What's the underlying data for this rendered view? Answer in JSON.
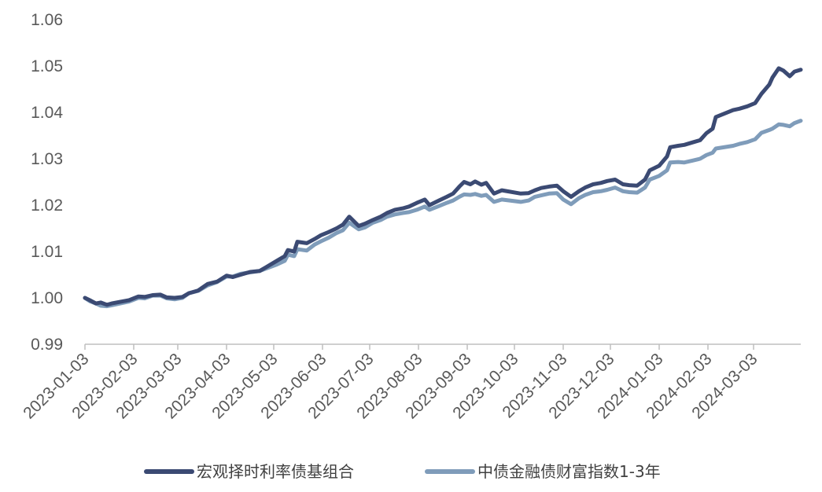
{
  "chart_data": {
    "type": "line",
    "title": "",
    "xlabel": "",
    "ylabel": "",
    "ylim": [
      0.99,
      1.06
    ],
    "y_ticks": [
      "0.99",
      "1.00",
      "1.01",
      "1.02",
      "1.03",
      "1.04",
      "1.05",
      "1.06"
    ],
    "x_ticks": [
      "2023-01-03",
      "2023-02-03",
      "2023-03-03",
      "2023-04-03",
      "2023-05-03",
      "2023-06-03",
      "2023-07-03",
      "2023-08-03",
      "2023-09-03",
      "2023-10-03",
      "2023-11-03",
      "2023-12-03",
      "2024-01-03",
      "2024-02-03",
      "2024-03-03"
    ],
    "grid": false,
    "legend_position": "bottom",
    "series": [
      {
        "name": "宏观择时利率债基组合",
        "color": "#3b4a73",
        "points": [
          [
            "2023-01-03",
            1.0
          ],
          [
            "2023-01-06",
            0.9995
          ],
          [
            "2023-01-10",
            0.9988
          ],
          [
            "2023-01-13",
            0.999
          ],
          [
            "2023-01-17",
            0.9985
          ],
          [
            "2023-01-20",
            0.9988
          ],
          [
            "2023-01-31",
            0.9995
          ],
          [
            "2023-02-06",
            1.0003
          ],
          [
            "2023-02-10",
            1.0002
          ],
          [
            "2023-02-15",
            1.0006
          ],
          [
            "2023-02-20",
            1.0007
          ],
          [
            "2023-02-24",
            1.0001
          ],
          [
            "2023-03-01",
            1.0
          ],
          [
            "2023-03-06",
            1.0002
          ],
          [
            "2023-03-10",
            1.001
          ],
          [
            "2023-03-16",
            1.0016
          ],
          [
            "2023-03-22",
            1.003
          ],
          [
            "2023-03-28",
            1.0035
          ],
          [
            "2023-04-03",
            1.0048
          ],
          [
            "2023-04-07",
            1.0045
          ],
          [
            "2023-04-12",
            1.005
          ],
          [
            "2023-04-18",
            1.0056
          ],
          [
            "2023-04-24",
            1.0058
          ],
          [
            "2023-04-28",
            1.0066
          ],
          [
            "2023-05-05",
            1.008
          ],
          [
            "2023-05-10",
            1.009
          ],
          [
            "2023-05-12",
            1.0103
          ],
          [
            "2023-05-16",
            1.01
          ],
          [
            "2023-05-18",
            1.0121
          ],
          [
            "2023-05-24",
            1.0118
          ],
          [
            "2023-05-29",
            1.0127
          ],
          [
            "2023-06-02",
            1.0135
          ],
          [
            "2023-06-07",
            1.0142
          ],
          [
            "2023-06-12",
            1.015
          ],
          [
            "2023-06-16",
            1.0158
          ],
          [
            "2023-06-20",
            1.0175
          ],
          [
            "2023-06-26",
            1.0155
          ],
          [
            "2023-06-30",
            1.016
          ],
          [
            "2023-07-05",
            1.0168
          ],
          [
            "2023-07-10",
            1.0175
          ],
          [
            "2023-07-14",
            1.0183
          ],
          [
            "2023-07-19",
            1.019
          ],
          [
            "2023-07-24",
            1.0193
          ],
          [
            "2023-07-28",
            1.0197
          ],
          [
            "2023-08-02",
            1.0205
          ],
          [
            "2023-08-07",
            1.0212
          ],
          [
            "2023-08-10",
            1.02
          ],
          [
            "2023-08-16",
            1.021
          ],
          [
            "2023-08-21",
            1.0218
          ],
          [
            "2023-08-25",
            1.0225
          ],
          [
            "2023-08-29",
            1.024
          ],
          [
            "2023-09-01",
            1.025
          ],
          [
            "2023-09-05",
            1.0245
          ],
          [
            "2023-09-08",
            1.0251
          ],
          [
            "2023-09-12",
            1.0244
          ],
          [
            "2023-09-15",
            1.0248
          ],
          [
            "2023-09-20",
            1.0225
          ],
          [
            "2023-09-25",
            1.0232
          ],
          [
            "2023-10-07",
            1.0225
          ],
          [
            "2023-10-12",
            1.0226
          ],
          [
            "2023-10-16",
            1.0232
          ],
          [
            "2023-10-20",
            1.0237
          ],
          [
            "2023-10-25",
            1.024
          ],
          [
            "2023-10-30",
            1.0242
          ],
          [
            "2023-11-03",
            1.023
          ],
          [
            "2023-11-08",
            1.0218
          ],
          [
            "2023-11-13",
            1.023
          ],
          [
            "2023-11-17",
            1.0238
          ],
          [
            "2023-11-22",
            1.0245
          ],
          [
            "2023-11-27",
            1.0248
          ],
          [
            "2023-12-01",
            1.0252
          ],
          [
            "2023-12-06",
            1.0255
          ],
          [
            "2023-12-11",
            1.0245
          ],
          [
            "2023-12-15",
            1.0243
          ],
          [
            "2023-12-20",
            1.0242
          ],
          [
            "2023-12-25",
            1.0255
          ],
          [
            "2023-12-28",
            1.0275
          ],
          [
            "2024-01-03",
            1.0285
          ],
          [
            "2024-01-08",
            1.0305
          ],
          [
            "2024-01-10",
            1.0325
          ],
          [
            "2024-01-15",
            1.0328
          ],
          [
            "2024-01-19",
            1.033
          ],
          [
            "2024-01-24",
            1.0335
          ],
          [
            "2024-01-29",
            1.034
          ],
          [
            "2024-02-02",
            1.0355
          ],
          [
            "2024-02-06",
            1.0365
          ],
          [
            "2024-02-08",
            1.039
          ],
          [
            "2024-02-19",
            1.0405
          ],
          [
            "2024-02-23",
            1.0408
          ],
          [
            "2024-02-28",
            1.0413
          ],
          [
            "2024-03-04",
            1.042
          ],
          [
            "2024-03-08",
            1.044
          ],
          [
            "2024-03-13",
            1.046
          ],
          [
            "2024-03-15",
            1.0475
          ],
          [
            "2024-03-19",
            1.0495
          ],
          [
            "2024-03-22",
            1.049
          ],
          [
            "2024-03-26",
            1.0478
          ],
          [
            "2024-03-29",
            1.0488
          ],
          [
            "2024-04-02",
            1.0492
          ]
        ]
      },
      {
        "name": "中债金融债财富指数1-3年",
        "color": "#7f9cba",
        "points": [
          [
            "2023-01-03",
            1.0
          ],
          [
            "2023-01-06",
            0.9993
          ],
          [
            "2023-01-10",
            0.9988
          ],
          [
            "2023-01-13",
            0.9983
          ],
          [
            "2023-01-17",
            0.9982
          ],
          [
            "2023-01-20",
            0.9984
          ],
          [
            "2023-01-31",
            0.9992
          ],
          [
            "2023-02-06",
            1.0
          ],
          [
            "2023-02-10",
            0.9999
          ],
          [
            "2023-02-15",
            1.0005
          ],
          [
            "2023-02-20",
            1.0005
          ],
          [
            "2023-02-24",
            0.9999
          ],
          [
            "2023-03-01",
            0.9997
          ],
          [
            "2023-03-06",
            1.0
          ],
          [
            "2023-03-10",
            1.001
          ],
          [
            "2023-03-16",
            1.0015
          ],
          [
            "2023-03-22",
            1.0027
          ],
          [
            "2023-03-28",
            1.0034
          ],
          [
            "2023-04-03",
            1.0046
          ],
          [
            "2023-04-07",
            1.0046
          ],
          [
            "2023-04-12",
            1.0052
          ],
          [
            "2023-04-18",
            1.0055
          ],
          [
            "2023-04-24",
            1.0058
          ],
          [
            "2023-04-28",
            1.0063
          ],
          [
            "2023-05-05",
            1.0072
          ],
          [
            "2023-05-10",
            1.008
          ],
          [
            "2023-05-12",
            1.0093
          ],
          [
            "2023-05-16",
            1.009
          ],
          [
            "2023-05-18",
            1.0105
          ],
          [
            "2023-05-24",
            1.0102
          ],
          [
            "2023-05-29",
            1.0115
          ],
          [
            "2023-06-02",
            1.0122
          ],
          [
            "2023-06-07",
            1.013
          ],
          [
            "2023-06-12",
            1.014
          ],
          [
            "2023-06-16",
            1.0146
          ],
          [
            "2023-06-20",
            1.0162
          ],
          [
            "2023-06-26",
            1.0148
          ],
          [
            "2023-06-30",
            1.0152
          ],
          [
            "2023-07-05",
            1.0162
          ],
          [
            "2023-07-10",
            1.0168
          ],
          [
            "2023-07-14",
            1.0175
          ],
          [
            "2023-07-19",
            1.018
          ],
          [
            "2023-07-24",
            1.0183
          ],
          [
            "2023-07-28",
            1.0185
          ],
          [
            "2023-08-02",
            1.019
          ],
          [
            "2023-08-07",
            1.0197
          ],
          [
            "2023-08-10",
            1.019
          ],
          [
            "2023-08-16",
            1.0198
          ],
          [
            "2023-08-21",
            1.0205
          ],
          [
            "2023-08-25",
            1.021
          ],
          [
            "2023-08-29",
            1.0218
          ],
          [
            "2023-09-01",
            1.0223
          ],
          [
            "2023-09-05",
            1.0222
          ],
          [
            "2023-09-08",
            1.0224
          ],
          [
            "2023-09-12",
            1.022
          ],
          [
            "2023-09-15",
            1.0222
          ],
          [
            "2023-09-20",
            1.0207
          ],
          [
            "2023-09-25",
            1.0212
          ],
          [
            "2023-10-07",
            1.0207
          ],
          [
            "2023-10-12",
            1.021
          ],
          [
            "2023-10-16",
            1.0218
          ],
          [
            "2023-10-20",
            1.0221
          ],
          [
            "2023-10-25",
            1.0225
          ],
          [
            "2023-10-30",
            1.0226
          ],
          [
            "2023-11-03",
            1.0212
          ],
          [
            "2023-11-08",
            1.0202
          ],
          [
            "2023-11-13",
            1.0215
          ],
          [
            "2023-11-17",
            1.0222
          ],
          [
            "2023-11-22",
            1.0228
          ],
          [
            "2023-11-27",
            1.023
          ],
          [
            "2023-12-01",
            1.0233
          ],
          [
            "2023-12-06",
            1.0238
          ],
          [
            "2023-12-11",
            1.023
          ],
          [
            "2023-12-15",
            1.0228
          ],
          [
            "2023-12-20",
            1.0227
          ],
          [
            "2023-12-25",
            1.0238
          ],
          [
            "2023-12-28",
            1.0255
          ],
          [
            "2024-01-03",
            1.0263
          ],
          [
            "2024-01-08",
            1.0275
          ],
          [
            "2024-01-10",
            1.0292
          ],
          [
            "2024-01-15",
            1.0293
          ],
          [
            "2024-01-19",
            1.0292
          ],
          [
            "2024-01-24",
            1.0296
          ],
          [
            "2024-01-29",
            1.03
          ],
          [
            "2024-02-02",
            1.0308
          ],
          [
            "2024-02-06",
            1.0313
          ],
          [
            "2024-02-08",
            1.0322
          ],
          [
            "2024-02-19",
            1.0328
          ],
          [
            "2024-02-23",
            1.0332
          ],
          [
            "2024-02-28",
            1.0336
          ],
          [
            "2024-03-04",
            1.0342
          ],
          [
            "2024-03-08",
            1.0356
          ],
          [
            "2024-03-13",
            1.0362
          ],
          [
            "2024-03-15",
            1.0365
          ],
          [
            "2024-03-19",
            1.0374
          ],
          [
            "2024-03-22",
            1.0373
          ],
          [
            "2024-03-26",
            1.037
          ],
          [
            "2024-03-29",
            1.0377
          ],
          [
            "2024-04-02",
            1.0382
          ]
        ]
      }
    ]
  }
}
